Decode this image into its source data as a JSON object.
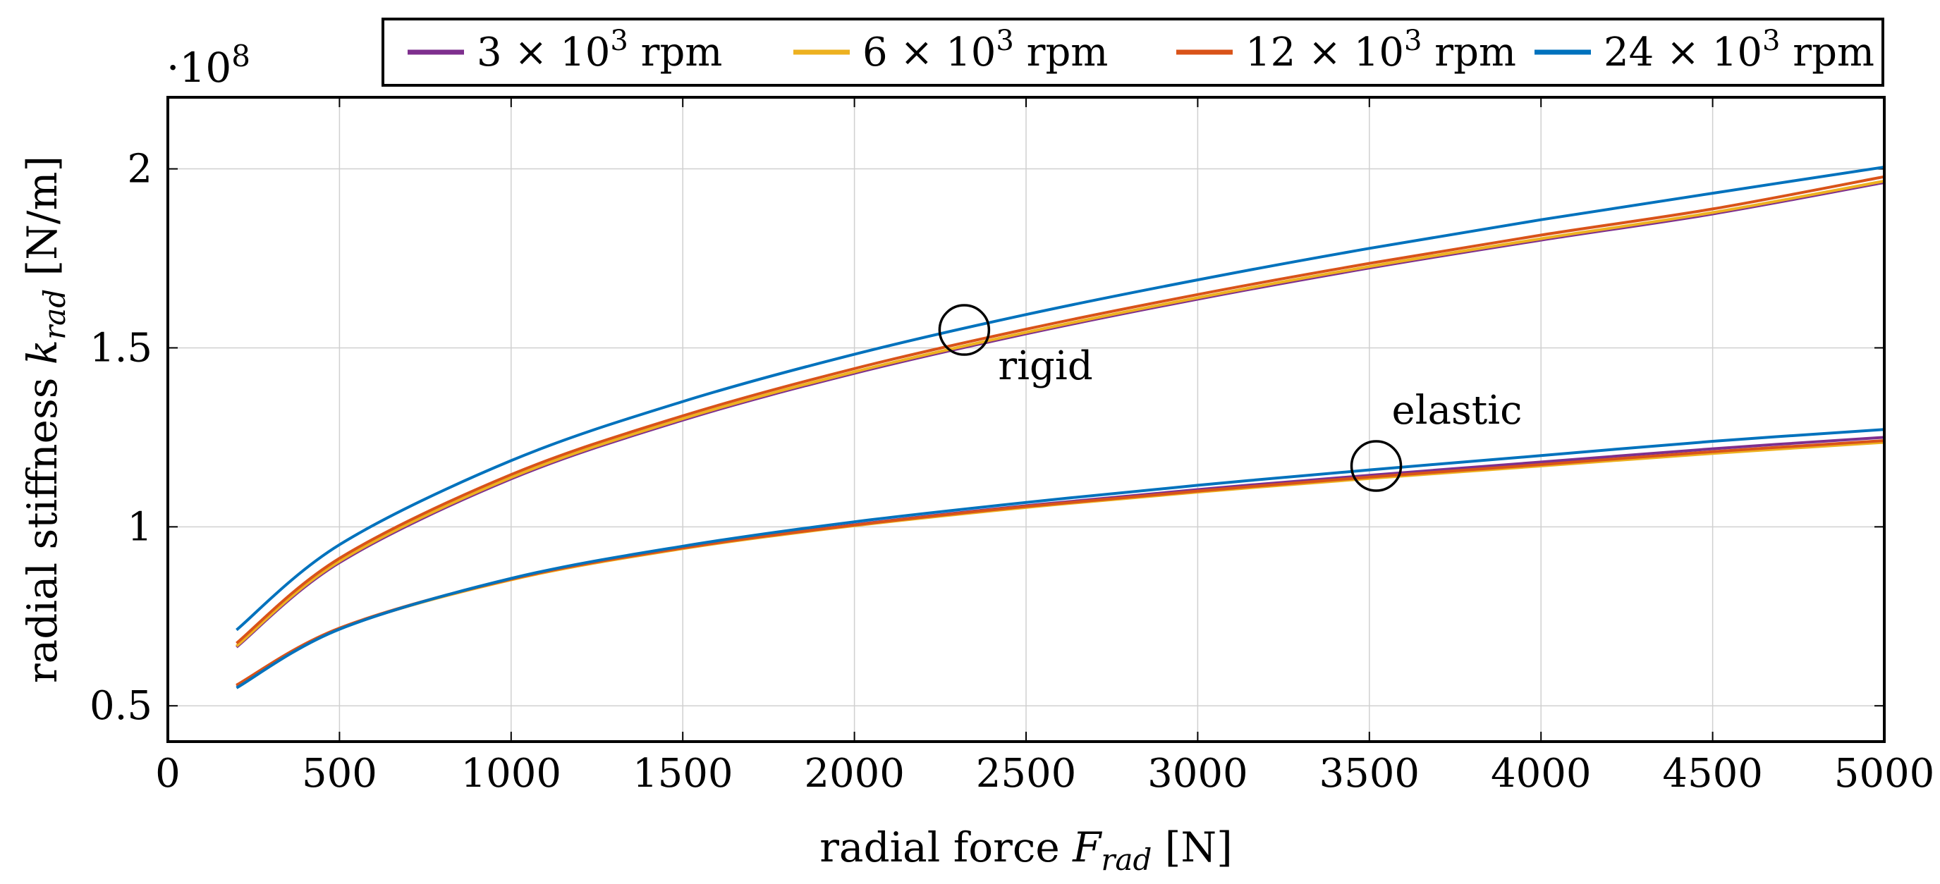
{
  "chart_data": {
    "type": "line",
    "title": "",
    "xlabel": "radial force F_rad [N]",
    "ylabel": "radial stiffness k_rad [N/m]",
    "y_scale_label": "·10^8",
    "y_scale_factor": 100000000,
    "xlim": [
      0,
      5000
    ],
    "ylim": [
      0.4,
      2.2
    ],
    "xticks": [
      0,
      500,
      1000,
      1500,
      2000,
      2500,
      3000,
      3500,
      4000,
      4500,
      5000
    ],
    "yticks": [
      0.5,
      1,
      1.5,
      2
    ],
    "ytick_labels": [
      "0.5",
      "1",
      "1.5",
      "2"
    ],
    "grid": true,
    "legend_position": "top-right, above plot",
    "series": [
      {
        "name": "3 × 10^3 rpm",
        "color": "#7e2f8e",
        "curves": [
          {
            "group": "rigid",
            "x": [
              200,
              500,
              1000,
              1500,
              2000,
              2500,
              3000,
              3500,
              4000,
              4500,
              5000
            ],
            "y": [
              0.664,
              0.9,
              1.134,
              1.298,
              1.429,
              1.539,
              1.636,
              1.723,
              1.801,
              1.874,
              1.962
            ]
          },
          {
            "group": "elastic",
            "x": [
              200,
              500,
              1000,
              1500,
              2000,
              2500,
              3000,
              3500,
              4000,
              4500,
              5000
            ],
            "y": [
              0.555,
              0.715,
              0.853,
              0.941,
              1.006,
              1.059,
              1.104,
              1.144,
              1.181,
              1.218,
              1.25
            ]
          }
        ]
      },
      {
        "name": "6 × 10^3 rpm",
        "color": "#edb120",
        "curves": [
          {
            "group": "rigid",
            "x": [
              200,
              500,
              1000,
              1500,
              2000,
              2500,
              3000,
              3500,
              4000,
              4500,
              5000
            ],
            "y": [
              0.667,
              0.904,
              1.138,
              1.302,
              1.433,
              1.543,
              1.64,
              1.727,
              1.805,
              1.878,
              1.966
            ]
          },
          {
            "group": "elastic",
            "x": [
              200,
              500,
              1000,
              1500,
              2000,
              2500,
              3000,
              3500,
              4000,
              4500,
              5000
            ],
            "y": [
              0.557,
              0.716,
              0.852,
              0.939,
              1.003,
              1.054,
              1.097,
              1.135,
              1.17,
              1.205,
              1.236
            ]
          }
        ]
      },
      {
        "name": "12 × 10^3 rpm",
        "color": "#d95319",
        "curves": [
          {
            "group": "rigid",
            "x": [
              200,
              500,
              1000,
              1500,
              2000,
              2500,
              3000,
              3500,
              4000,
              4500,
              5000
            ],
            "y": [
              0.675,
              0.912,
              1.146,
              1.31,
              1.442,
              1.552,
              1.649,
              1.736,
              1.815,
              1.888,
              1.978
            ]
          },
          {
            "group": "elastic",
            "x": [
              200,
              500,
              1000,
              1500,
              2000,
              2500,
              3000,
              3500,
              4000,
              4500,
              5000
            ],
            "y": [
              0.558,
              0.717,
              0.854,
              0.941,
              1.005,
              1.057,
              1.1,
              1.139,
              1.174,
              1.21,
              1.241
            ]
          }
        ]
      },
      {
        "name": "24 × 10^3 rpm",
        "color": "#0072bd",
        "curves": [
          {
            "group": "rigid",
            "x": [
              200,
              500,
              1000,
              1500,
              2000,
              2500,
              3000,
              3500,
              4000,
              4500,
              5000
            ],
            "y": [
              0.712,
              0.95,
              1.185,
              1.35,
              1.482,
              1.593,
              1.69,
              1.778,
              1.858,
              1.932,
              2.005
            ]
          },
          {
            "group": "elastic",
            "x": [
              200,
              500,
              1000,
              1500,
              2000,
              2500,
              3000,
              3500,
              4000,
              4500,
              5000
            ],
            "y": [
              0.55,
              0.714,
              0.856,
              0.946,
              1.014,
              1.068,
              1.116,
              1.159,
              1.199,
              1.239,
              1.272
            ]
          }
        ]
      }
    ],
    "annotations": [
      {
        "text": "rigid",
        "marker_x": 2320,
        "marker_y": 1.55
      },
      {
        "text": "elastic",
        "marker_x": 3520,
        "marker_y": 1.17
      }
    ]
  }
}
